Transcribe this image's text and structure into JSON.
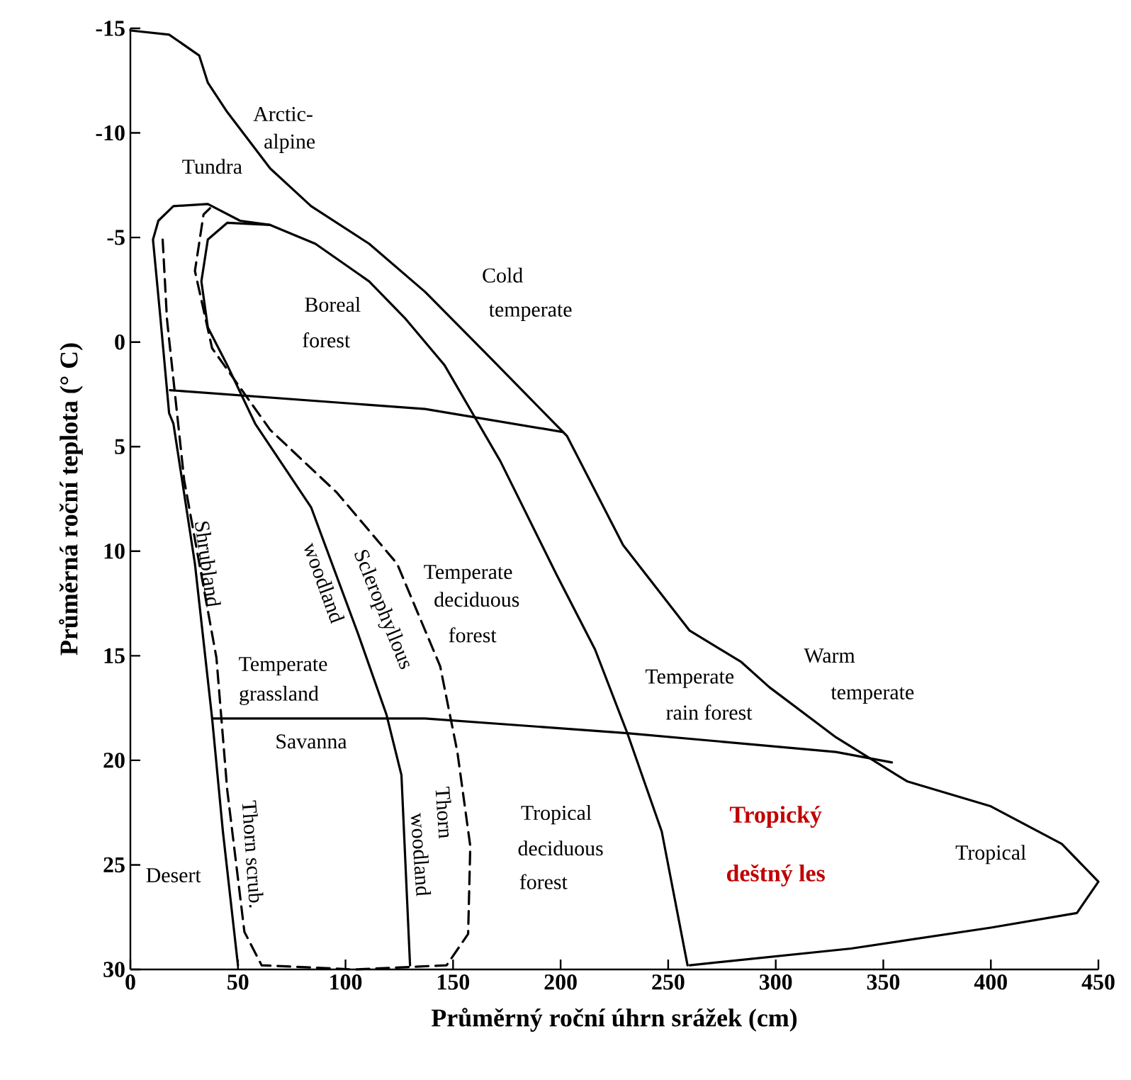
{
  "chart_data": {
    "type": "line",
    "xlabel": "Průměrný roční úhrn srážek (cm)",
    "ylabel": "Průměrná roční teplota (° C)",
    "xlim": [
      0,
      450
    ],
    "ylim": [
      30,
      -15
    ],
    "xticks": [
      0,
      50,
      100,
      150,
      200,
      250,
      300,
      350,
      400,
      450
    ],
    "yticks": [
      -15,
      -10,
      -5,
      0,
      5,
      10,
      15,
      20,
      25,
      30
    ],
    "marker": "none",
    "series": [
      {
        "color": "#000000",
        "line_style": "solid",
        "x": [
          0,
          18,
          32,
          36,
          45,
          65,
          84,
          111,
          137,
          163,
          203,
          229,
          260,
          284,
          297,
          328,
          361,
          400,
          433,
          450,
          440,
          400,
          335,
          260
        ],
        "values": [
          -14.9,
          -14.7,
          -13.7,
          -12.4,
          -11.0,
          -8.3,
          -6.5,
          -4.7,
          -2.4,
          0.3,
          4.5,
          9.7,
          13.8,
          15.3,
          16.5,
          18.9,
          21.0,
          22.2,
          24.0,
          25.8,
          27.3,
          28.0,
          29.0,
          29.8
        ]
      },
      {
        "color": "#000000",
        "line_style": "solid",
        "x": [
          50,
          43,
          38,
          30,
          20,
          18,
          14,
          10.5,
          13,
          20,
          36,
          51,
          65,
          86,
          111,
          128,
          146,
          159,
          172,
          198,
          216,
          231,
          247,
          259
        ],
        "values": [
          29.8,
          23.4,
          18.0,
          10.6,
          3.9,
          3.4,
          -1.1,
          -4.9,
          -5.8,
          -6.5,
          -6.6,
          -5.8,
          -5.6,
          -4.7,
          -2.9,
          -1.1,
          1.1,
          3.4,
          5.7,
          11.1,
          14.7,
          18.7,
          23.4,
          29.8
        ]
      },
      {
        "color": "#000000",
        "line_style": "solid",
        "x": [
          130,
          126,
          119,
          106,
          84,
          58,
          45,
          36,
          33,
          36,
          45,
          65
        ],
        "values": [
          29.8,
          20.7,
          17.8,
          14.0,
          7.9,
          3.9,
          1.1,
          -0.7,
          -2.9,
          -4.9,
          -5.7,
          -5.6
        ]
      },
      {
        "color": "#000000",
        "line_style": "dashed",
        "x": [
          15,
          17,
          25,
          40,
          45,
          53,
          61,
          104,
          147,
          157,
          158,
          152,
          144,
          124,
          96,
          65,
          38,
          30,
          34,
          37
        ],
        "values": [
          -4.9,
          -1.1,
          6.6,
          15.1,
          21.4,
          28.2,
          29.8,
          30.0,
          29.8,
          28.3,
          24.1,
          19.6,
          15.5,
          10.6,
          7.2,
          4.2,
          0.3,
          -3.4,
          -6.1,
          -6.4
        ]
      },
      {
        "color": "#000000",
        "line_style": "solid",
        "x": [
          18.4,
          137,
          201
        ],
        "values": [
          2.3,
          3.2,
          4.3
        ]
      },
      {
        "color": "#000000",
        "line_style": "solid",
        "x": [
          38,
          137,
          231,
          328,
          354
        ],
        "values": [
          18.0,
          18.0,
          18.7,
          19.6,
          20.1
        ]
      }
    ],
    "annotations": [
      "Arctic-",
      "alpine",
      "Tundra",
      "Cold",
      "temperate",
      "Boreal",
      "forest",
      "Shrubland",
      "Sclerophyllous",
      "woodland",
      "Temperate",
      "deciduous",
      "forest",
      "Temperate",
      "grassland",
      "Savanna",
      "Thorn scrub.",
      "Desert",
      "woodland",
      "Thorn",
      "Tropical",
      "deciduous",
      "forest",
      "Tropický",
      "deštný les",
      "Temperate",
      "rain forest",
      "Warm",
      "temperate",
      "Tropical"
    ]
  }
}
